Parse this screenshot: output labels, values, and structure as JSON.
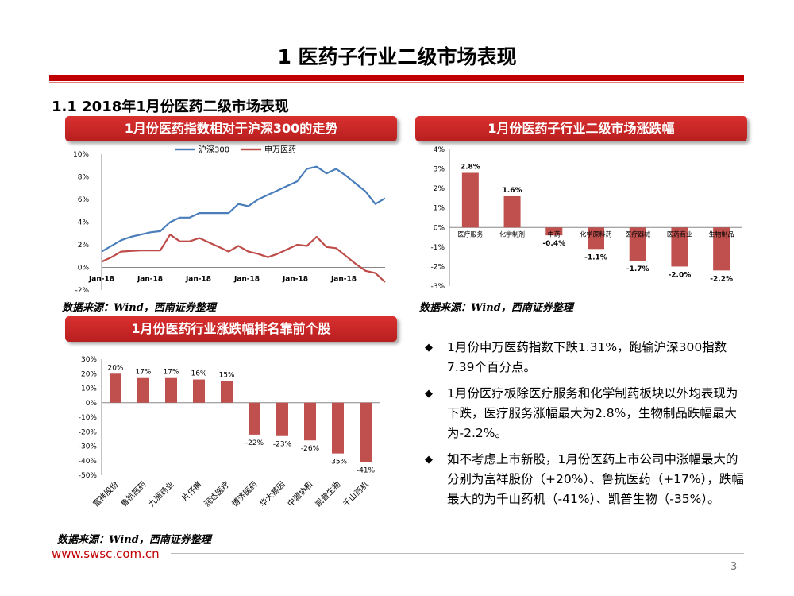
{
  "page": {
    "title": "1 医药子行业二级市场表现",
    "subtitle": "1.1 2018年1月份医药二级市场表现",
    "footer_url": "www.swsc.com.cn",
    "page_number": "3",
    "accent_color": "#c00000"
  },
  "panels": {
    "line_title": "1月份医药指数相对于沪深300的走势",
    "diverging_title": "1月份医药子行业二级市场涨跌幅",
    "ranking_title": "1月份医药行业涨跌幅排名靠前个股",
    "source_note": "数据来源：Wind，西南证券整理"
  },
  "bullets": [
    "1月份申万医药指数下跌1.31%，跑输沪深300指数7.39个百分点。",
    "1月份医疗板除医疗服务和化学制药板块以外均表现为下跌，医疗服务涨幅最大为2.8%，生物制品跌幅最大为-2.2%。",
    "如不考虑上市新股，1月份医药上市公司中涨幅最大的分别为富祥股份（+20%）、鲁抗医药（+17%），跌幅最大的为千山药机（-41%）、凯普生物（-35%）。"
  ],
  "bullet_marker": "◆",
  "chart_data": [
    {
      "type": "line",
      "title": "1月份医药指数相对于沪深300的走势",
      "xlabel": "",
      "ylabel": "",
      "ylim": [
        -2,
        10
      ],
      "y_ticks": [
        "10%",
        "8%",
        "6%",
        "4%",
        "2%",
        "0%",
        "-2%"
      ],
      "x_tick_labels": [
        "Jan-18",
        "Jan-18",
        "Jan-18",
        "Jan-18",
        "Jan-18",
        "Jan-18"
      ],
      "legend_position": "top-center",
      "series": [
        {
          "name": "沪深300",
          "color": "#4a7ebb",
          "values": [
            1.4,
            1.9,
            2.4,
            2.7,
            2.9,
            3.1,
            3.2,
            4.0,
            4.4,
            4.4,
            4.8,
            4.8,
            4.8,
            4.8,
            5.6,
            5.4,
            6.0,
            6.4,
            6.8,
            7.2,
            7.6,
            8.7,
            8.9,
            8.3,
            8.7,
            8.1,
            7.4,
            6.7,
            5.6,
            6.1
          ]
        },
        {
          "name": "申万医药",
          "color": "#be4b48",
          "values": [
            0.5,
            0.9,
            1.4,
            1.45,
            1.5,
            1.5,
            1.5,
            2.9,
            2.3,
            2.3,
            2.6,
            2.2,
            1.8,
            1.4,
            1.9,
            1.4,
            1.2,
            0.9,
            1.2,
            1.6,
            2.0,
            1.9,
            2.7,
            1.8,
            1.7,
            1.0,
            0.3,
            -0.3,
            -0.5,
            -1.3
          ]
        }
      ]
    },
    {
      "type": "bar",
      "title": "1月份医药子行业二级市场涨跌幅",
      "categories": [
        "医疗服务",
        "化学制剂",
        "中药",
        "化学原料药",
        "医疗器械",
        "医药商业",
        "生物制品"
      ],
      "values": [
        2.8,
        1.6,
        -0.4,
        -1.1,
        -1.7,
        -2.0,
        -2.2
      ],
      "data_labels": [
        "2.8%",
        "1.6%",
        "-0.4%",
        "-1.1%",
        "-1.7%",
        "-2.0%",
        "-2.2%"
      ],
      "ylim": [
        -3,
        4
      ],
      "y_ticks": [
        "4%",
        "3%",
        "2%",
        "1%",
        "0%",
        "-1%",
        "-2%",
        "-3%"
      ],
      "color": "#c0504d"
    },
    {
      "type": "bar",
      "title": "1月份医药行业涨跌幅排名靠前个股",
      "categories": [
        "富祥股份",
        "鲁抗医药",
        "九洲药业",
        "片仔癀",
        "润达医疗",
        "博济医药",
        "华大基因",
        "中源协和",
        "凯普生物",
        "千山药机"
      ],
      "values": [
        20,
        17,
        17,
        16,
        15,
        -22,
        -23,
        -26,
        -35,
        -41
      ],
      "data_labels": [
        "20%",
        "17%",
        "17%",
        "16%",
        "15%",
        "-22%",
        "-23%",
        "-26%",
        "-35%",
        "-41%"
      ],
      "ylim": [
        -50,
        30
      ],
      "y_ticks": [
        "30%",
        "20%",
        "10%",
        "0%",
        "-10%",
        "-20%",
        "-30%",
        "-40%",
        "-50%"
      ],
      "color": "#c0504d"
    }
  ]
}
